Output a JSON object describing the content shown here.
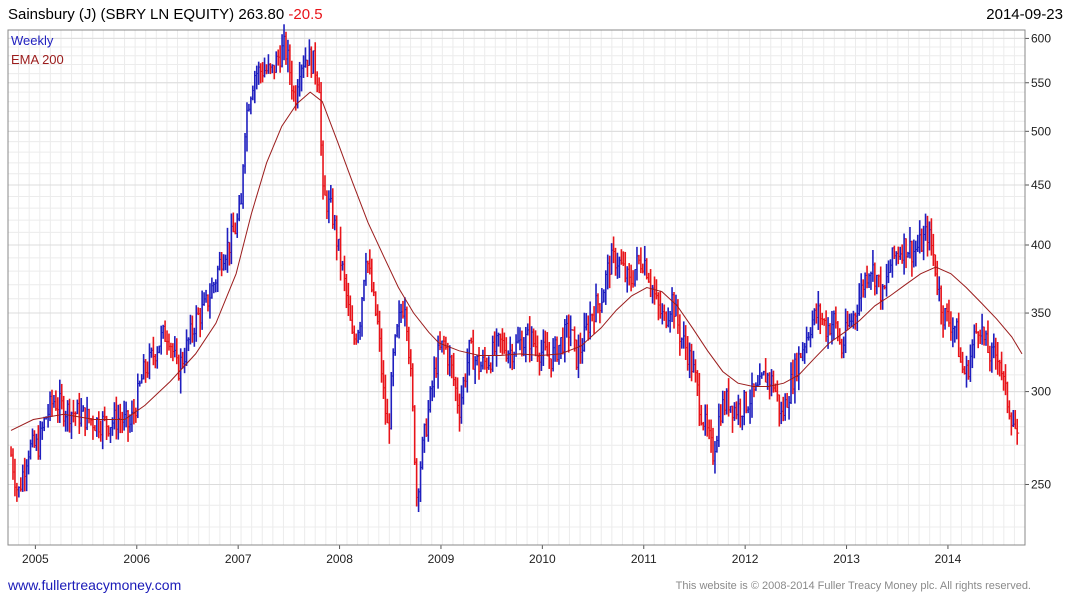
{
  "header": {
    "name": "Sainsbury (J) (SBRY LN EQUITY)",
    "price": "263.80",
    "change": "-20.5",
    "date": "2014-09-23"
  },
  "legend": {
    "series1": "Weekly",
    "series2": "EMA 200",
    "series1_color": "#1f1fbf",
    "series2_color": "#9b1c1c"
  },
  "colors": {
    "up": "#1f1fbf",
    "down": "#e8141a",
    "ema": "#9b1c1c",
    "grid": "#dcdcdc",
    "title_change": "#e8141a"
  },
  "footer": {
    "site": "www.fullertreacymoney.com",
    "copyright": "This website is © 2008-2014 Fuller Treacy Money plc. All rights reserved."
  },
  "chart_data": {
    "type": "line",
    "title": "Sainsbury (J) (SBRY LN EQUITY) 263.80 -20.5",
    "y_ticks": [
      "250",
      "300",
      "350",
      "400",
      "450",
      "500",
      "550",
      "600"
    ],
    "ylim": [
      222,
      610
    ],
    "x_ticks": [
      "2005",
      "2006",
      "2007",
      "2008",
      "2009",
      "2010",
      "2011",
      "2012",
      "2013",
      "2014"
    ],
    "xlim": [
      2004.75,
      2014.78
    ],
    "scale": "log",
    "grid": true,
    "legend_position": "top-left",
    "series": [
      {
        "name": "Weekly",
        "style": "bars",
        "points": [
          [
            2004.78,
            265
          ],
          [
            2004.85,
            245
          ],
          [
            2004.95,
            268
          ],
          [
            2005.05,
            270
          ],
          [
            2005.12,
            285
          ],
          [
            2005.2,
            295
          ],
          [
            2005.3,
            290
          ],
          [
            2005.45,
            287
          ],
          [
            2005.6,
            283
          ],
          [
            2005.75,
            282
          ],
          [
            2005.85,
            285
          ],
          [
            2005.95,
            280
          ],
          [
            2006.0,
            290
          ],
          [
            2006.08,
            310
          ],
          [
            2006.15,
            318
          ],
          [
            2006.25,
            332
          ],
          [
            2006.33,
            338
          ],
          [
            2006.42,
            312
          ],
          [
            2006.5,
            325
          ],
          [
            2006.6,
            345
          ],
          [
            2006.7,
            355
          ],
          [
            2006.8,
            375
          ],
          [
            2006.87,
            395
          ],
          [
            2006.93,
            400
          ],
          [
            2007.0,
            415
          ],
          [
            2007.05,
            430
          ],
          [
            2007.08,
            500
          ],
          [
            2007.12,
            530
          ],
          [
            2007.18,
            560
          ],
          [
            2007.27,
            565
          ],
          [
            2007.35,
            560
          ],
          [
            2007.42,
            580
          ],
          [
            2007.48,
            590
          ],
          [
            2007.52,
            570
          ],
          [
            2007.58,
            530
          ],
          [
            2007.62,
            570
          ],
          [
            2007.7,
            580
          ],
          [
            2007.77,
            570
          ],
          [
            2007.82,
            550
          ],
          [
            2007.85,
            440
          ],
          [
            2007.9,
            435
          ],
          [
            2007.95,
            425
          ],
          [
            2008.0,
            400
          ],
          [
            2008.05,
            380
          ],
          [
            2008.1,
            355
          ],
          [
            2008.15,
            330
          ],
          [
            2008.22,
            345
          ],
          [
            2008.28,
            395
          ],
          [
            2008.35,
            360
          ],
          [
            2008.4,
            340
          ],
          [
            2008.45,
            300
          ],
          [
            2008.5,
            275
          ],
          [
            2008.55,
            320
          ],
          [
            2008.62,
            350
          ],
          [
            2008.67,
            360
          ],
          [
            2008.73,
            300
          ],
          [
            2008.78,
            245
          ],
          [
            2008.83,
            265
          ],
          [
            2008.9,
            290
          ],
          [
            2008.98,
            320
          ],
          [
            2009.05,
            330
          ],
          [
            2009.12,
            315
          ],
          [
            2009.2,
            290
          ],
          [
            2009.3,
            325
          ],
          [
            2009.4,
            315
          ],
          [
            2009.5,
            320
          ],
          [
            2009.6,
            330
          ],
          [
            2009.7,
            325
          ],
          [
            2009.8,
            330
          ],
          [
            2009.9,
            333
          ],
          [
            2010.0,
            325
          ],
          [
            2010.1,
            320
          ],
          [
            2010.2,
            330
          ],
          [
            2010.3,
            340
          ],
          [
            2010.35,
            320
          ],
          [
            2010.42,
            330
          ],
          [
            2010.5,
            350
          ],
          [
            2010.6,
            360
          ],
          [
            2010.68,
            385
          ],
          [
            2010.75,
            390
          ],
          [
            2010.82,
            380
          ],
          [
            2010.88,
            370
          ],
          [
            2010.95,
            385
          ],
          [
            2011.02,
            390
          ],
          [
            2011.08,
            375
          ],
          [
            2011.15,
            355
          ],
          [
            2011.22,
            345
          ],
          [
            2011.3,
            360
          ],
          [
            2011.38,
            335
          ],
          [
            2011.45,
            325
          ],
          [
            2011.52,
            310
          ],
          [
            2011.58,
            290
          ],
          [
            2011.65,
            275
          ],
          [
            2011.7,
            265
          ],
          [
            2011.78,
            290
          ],
          [
            2011.85,
            295
          ],
          [
            2011.92,
            290
          ],
          [
            2012.0,
            292
          ],
          [
            2012.08,
            297
          ],
          [
            2012.15,
            300
          ],
          [
            2012.22,
            310
          ],
          [
            2012.3,
            305
          ],
          [
            2012.38,
            285
          ],
          [
            2012.45,
            300
          ],
          [
            2012.52,
            315
          ],
          [
            2012.6,
            330
          ],
          [
            2012.68,
            345
          ],
          [
            2012.75,
            350
          ],
          [
            2012.82,
            340
          ],
          [
            2012.9,
            345
          ],
          [
            2012.97,
            325
          ],
          [
            2013.03,
            340
          ],
          [
            2013.1,
            350
          ],
          [
            2013.18,
            370
          ],
          [
            2013.25,
            385
          ],
          [
            2013.32,
            375
          ],
          [
            2013.38,
            360
          ],
          [
            2013.45,
            385
          ],
          [
            2013.52,
            395
          ],
          [
            2013.6,
            400
          ],
          [
            2013.68,
            395
          ],
          [
            2013.75,
            400
          ],
          [
            2013.82,
            410
          ],
          [
            2013.87,
            395
          ],
          [
            2013.92,
            370
          ],
          [
            2013.97,
            350
          ],
          [
            2014.03,
            345
          ],
          [
            2014.1,
            340
          ],
          [
            2014.15,
            315
          ],
          [
            2014.2,
            310
          ],
          [
            2014.27,
            330
          ],
          [
            2014.33,
            345
          ],
          [
            2014.38,
            330
          ],
          [
            2014.45,
            320
          ],
          [
            2014.52,
            325
          ],
          [
            2014.58,
            300
          ],
          [
            2014.63,
            290
          ],
          [
            2014.68,
            280
          ],
          [
            2014.72,
            264
          ]
        ]
      },
      {
        "name": "EMA 200",
        "style": "line",
        "points": [
          [
            2004.78,
            278
          ],
          [
            2005.0,
            284
          ],
          [
            2005.3,
            287
          ],
          [
            2005.6,
            284
          ],
          [
            2005.9,
            284
          ],
          [
            2006.1,
            292
          ],
          [
            2006.35,
            306
          ],
          [
            2006.6,
            323
          ],
          [
            2006.8,
            343
          ],
          [
            2007.0,
            378
          ],
          [
            2007.15,
            425
          ],
          [
            2007.3,
            470
          ],
          [
            2007.45,
            505
          ],
          [
            2007.6,
            528
          ],
          [
            2007.73,
            540
          ],
          [
            2007.85,
            530
          ],
          [
            2008.0,
            490
          ],
          [
            2008.15,
            452
          ],
          [
            2008.3,
            418
          ],
          [
            2008.45,
            392
          ],
          [
            2008.6,
            368
          ],
          [
            2008.75,
            350
          ],
          [
            2008.9,
            337
          ],
          [
            2009.0,
            330
          ],
          [
            2009.2,
            325
          ],
          [
            2009.4,
            322
          ],
          [
            2009.6,
            322
          ],
          [
            2009.8,
            323
          ],
          [
            2010.0,
            322
          ],
          [
            2010.2,
            323
          ],
          [
            2010.4,
            328
          ],
          [
            2010.6,
            340
          ],
          [
            2010.75,
            352
          ],
          [
            2010.9,
            362
          ],
          [
            2011.05,
            368
          ],
          [
            2011.2,
            365
          ],
          [
            2011.35,
            355
          ],
          [
            2011.5,
            340
          ],
          [
            2011.65,
            325
          ],
          [
            2011.8,
            312
          ],
          [
            2011.95,
            305
          ],
          [
            2012.1,
            303
          ],
          [
            2012.25,
            303
          ],
          [
            2012.4,
            305
          ],
          [
            2012.55,
            310
          ],
          [
            2012.7,
            320
          ],
          [
            2012.85,
            330
          ],
          [
            2013.0,
            337
          ],
          [
            2013.15,
            345
          ],
          [
            2013.3,
            355
          ],
          [
            2013.45,
            362
          ],
          [
            2013.6,
            370
          ],
          [
            2013.75,
            378
          ],
          [
            2013.9,
            383
          ],
          [
            2014.05,
            378
          ],
          [
            2014.2,
            368
          ],
          [
            2014.35,
            357
          ],
          [
            2014.5,
            346
          ],
          [
            2014.65,
            334
          ],
          [
            2014.75,
            323
          ]
        ]
      }
    ]
  }
}
